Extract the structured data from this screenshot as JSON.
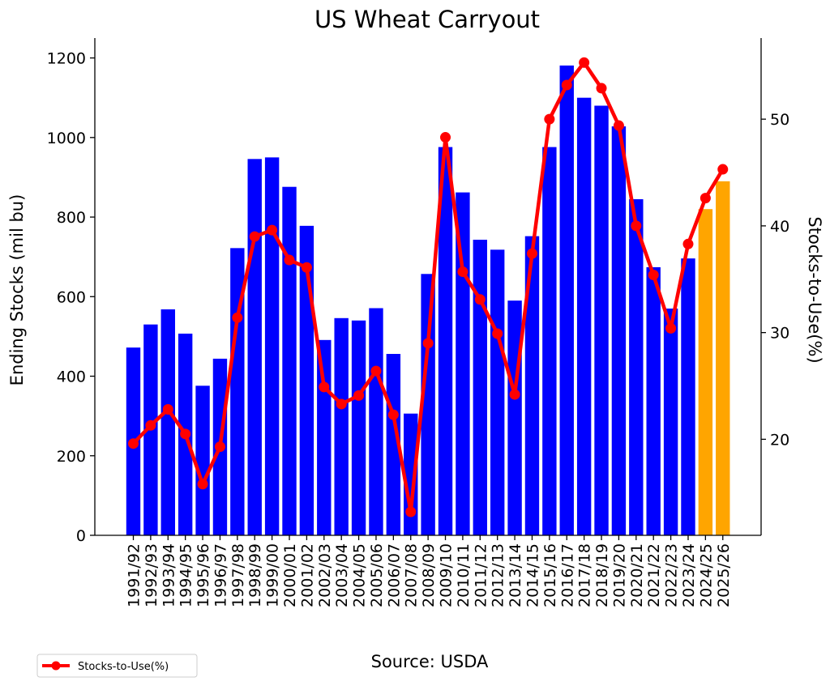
{
  "chart_data": {
    "type": "bar",
    "title": "US Wheat Carryout",
    "source": "Source: USDA",
    "ylabel": "Ending Stocks (mil bu)",
    "y2label": "Stocks-to-Use(%)",
    "ylim": [
      0,
      1250
    ],
    "y2lim": [
      11,
      57.6
    ],
    "yticks": [
      0,
      200,
      400,
      600,
      800,
      1000,
      1200
    ],
    "y2ticks": [
      20,
      30,
      40,
      50
    ],
    "legend_position": "bottom-left",
    "colors": {
      "actual": "#0000ff",
      "projected": "#ffa500",
      "line": "#ff0000"
    },
    "categories": [
      "1991/92",
      "1992/93",
      "1993/94",
      "1994/95",
      "1995/96",
      "1996/97",
      "1997/98",
      "1998/99",
      "1999/00",
      "2000/01",
      "2001/02",
      "2002/03",
      "2003/04",
      "2004/05",
      "2005/06",
      "2006/07",
      "2007/08",
      "2008/09",
      "2009/10",
      "2010/11",
      "2011/12",
      "2012/13",
      "2013/14",
      "2014/15",
      "2015/16",
      "2016/17",
      "2017/18",
      "2018/19",
      "2019/20",
      "2020/21",
      "2021/22",
      "2022/23",
      "2023/24",
      "2024/25",
      "2025/26"
    ],
    "projected_categories": [
      "2024/25",
      "2025/26"
    ],
    "series": [
      {
        "name": "Ending Stocks (mil bu)",
        "kind": "bar",
        "values": [
          472,
          530,
          568,
          507,
          376,
          444,
          722,
          946,
          950,
          876,
          778,
          491,
          546,
          540,
          571,
          456,
          306,
          657,
          976,
          862,
          743,
          718,
          590,
          752,
          976,
          1181,
          1100,
          1080,
          1028,
          845,
          674,
          570,
          696,
          820,
          890
        ]
      },
      {
        "name": "Stocks-to-Use(%)",
        "kind": "line",
        "axis": "right",
        "values": [
          19.6,
          21.3,
          22.8,
          20.5,
          15.8,
          19.3,
          31.4,
          39.0,
          39.6,
          36.8,
          36.1,
          24.9,
          23.3,
          24.1,
          26.4,
          22.3,
          13.2,
          29.0,
          48.3,
          35.7,
          33.1,
          29.9,
          24.2,
          37.4,
          50.0,
          53.2,
          55.3,
          52.9,
          49.4,
          40.0,
          35.4,
          30.4,
          38.3,
          42.6,
          45.3
        ]
      }
    ]
  }
}
